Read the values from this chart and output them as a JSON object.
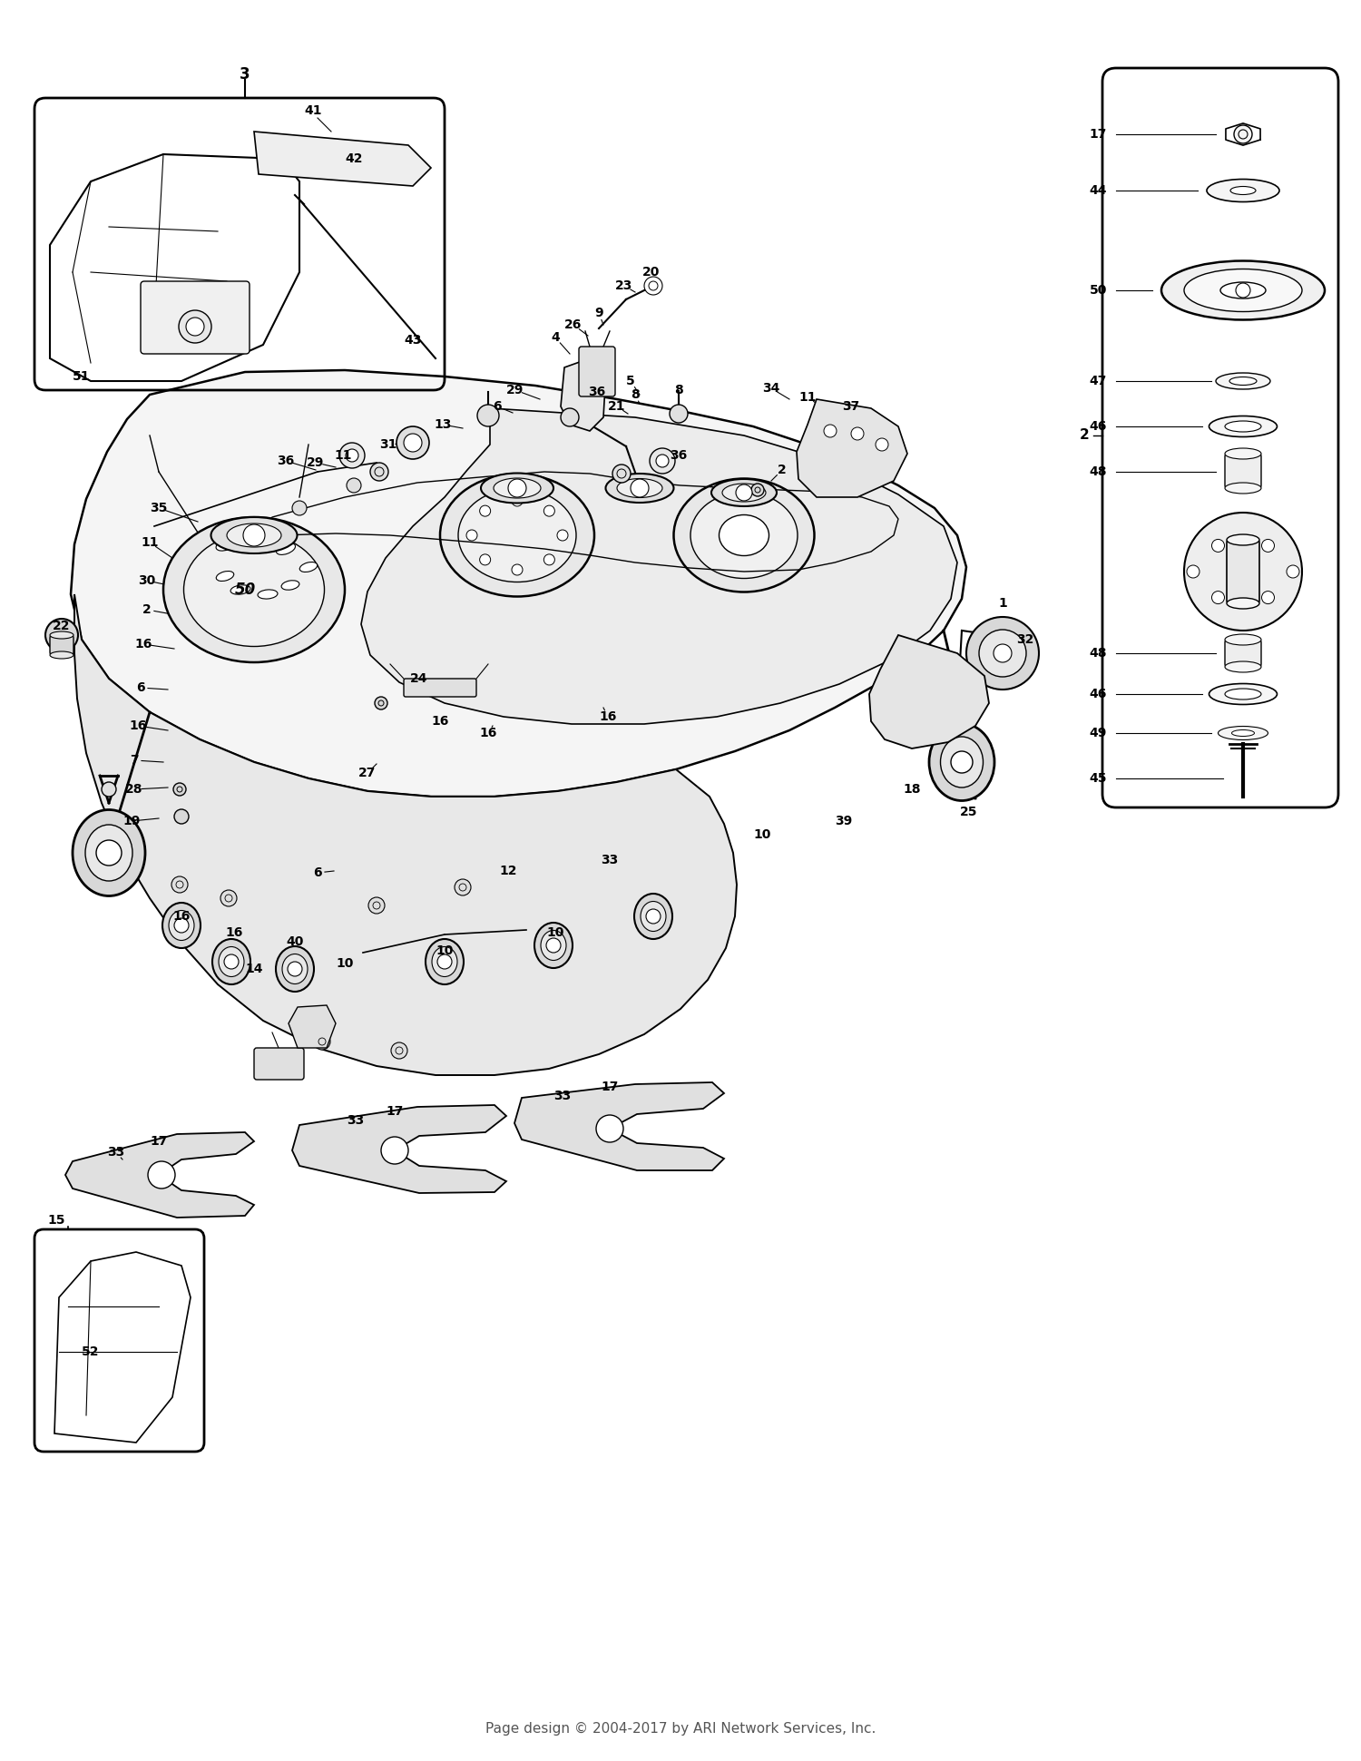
{
  "footer": "Page design © 2004-2017 by ARI Network Services, Inc.",
  "bg_color": "#ffffff",
  "line_color": "#000000",
  "footer_fontsize": 11,
  "fig_width": 15.0,
  "fig_height": 19.41,
  "dpi": 100
}
